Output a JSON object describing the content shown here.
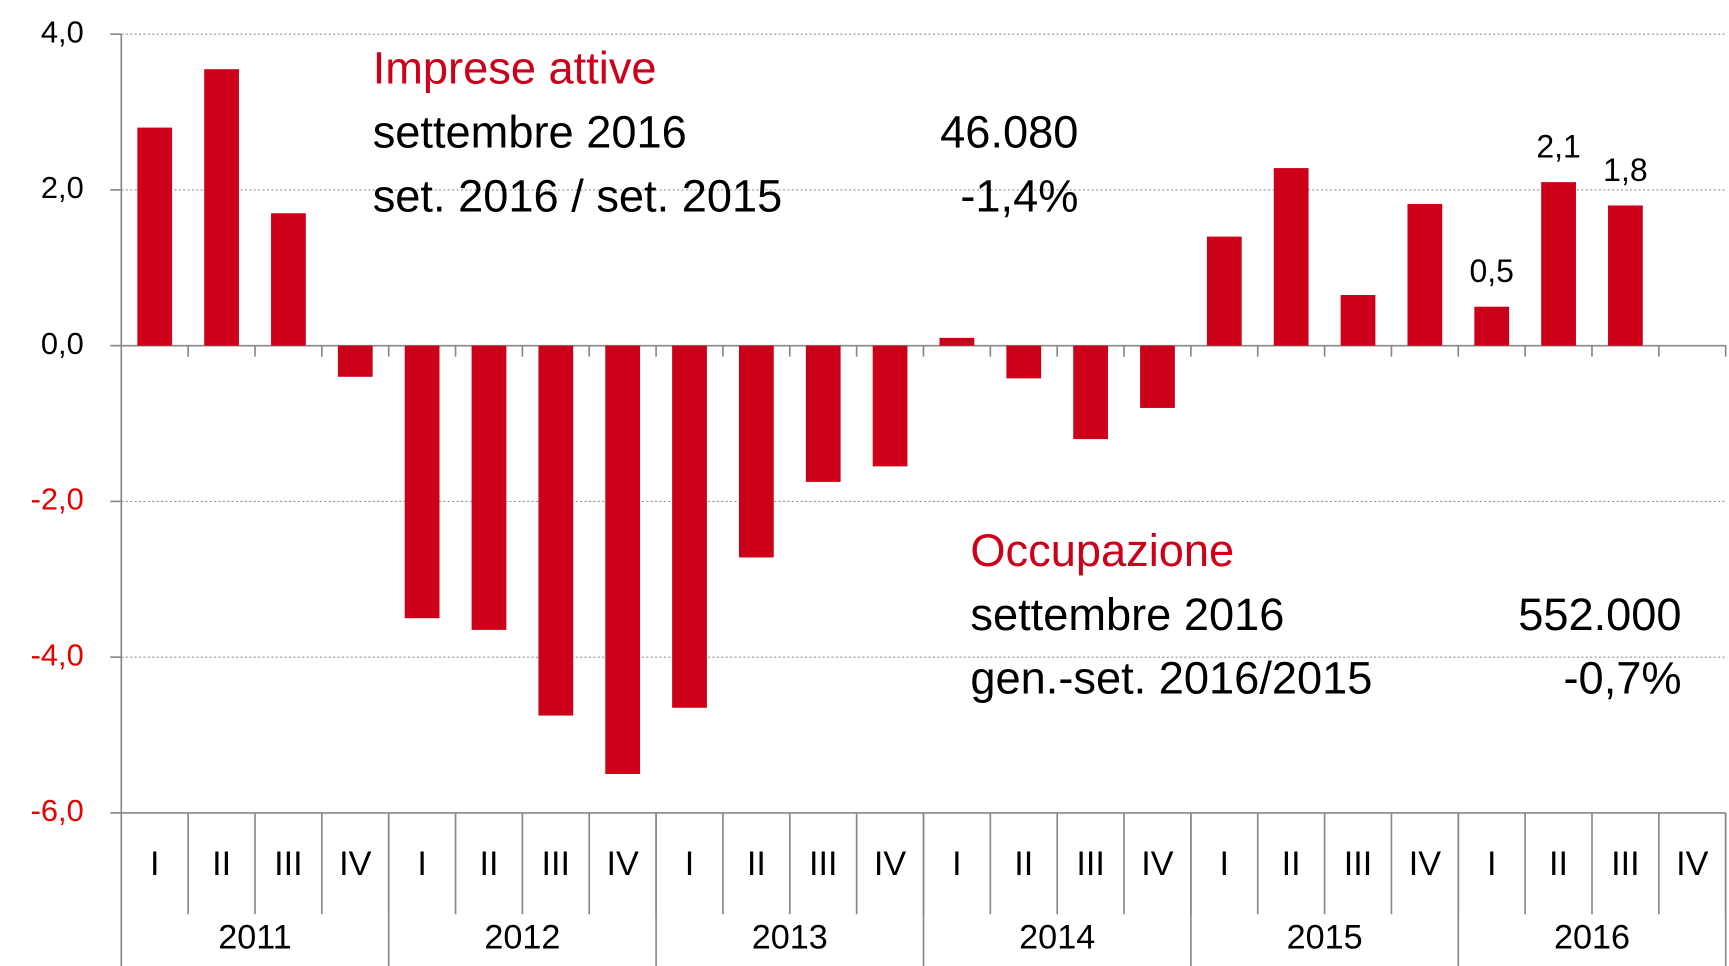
{
  "chart_data": {
    "type": "bar",
    "categories": [
      "I",
      "II",
      "III",
      "IV",
      "I",
      "II",
      "III",
      "IV",
      "I",
      "II",
      "III",
      "IV",
      "I",
      "II",
      "III",
      "IV",
      "I",
      "II",
      "III",
      "IV",
      "I",
      "II",
      "III",
      "IV"
    ],
    "groups": [
      {
        "label": "2011",
        "span": 4
      },
      {
        "label": "2012",
        "span": 4
      },
      {
        "label": "2013",
        "span": 4
      },
      {
        "label": "2014",
        "span": 4
      },
      {
        "label": "2015",
        "span": 4
      },
      {
        "label": "2016",
        "span": 4
      }
    ],
    "values": [
      2.8,
      3.55,
      1.7,
      -0.4,
      -3.5,
      -3.65,
      -4.75,
      -5.5,
      -4.65,
      -2.72,
      -1.75,
      -1.55,
      0.1,
      -0.42,
      -1.2,
      -0.8,
      1.4,
      2.28,
      0.65,
      1.82,
      0.5,
      2.1,
      1.8,
      null
    ],
    "value_labels": [
      null,
      null,
      null,
      null,
      null,
      null,
      null,
      null,
      null,
      null,
      null,
      null,
      null,
      null,
      null,
      null,
      null,
      null,
      null,
      null,
      "0,5",
      "2,1",
      "1,8",
      null
    ],
    "color": "#cc0019",
    "negative_tick_color": "#e60000",
    "ylim": [
      -6,
      4
    ],
    "yticks": [
      {
        "value": 4,
        "label": "4,0"
      },
      {
        "value": 2,
        "label": "2,0"
      },
      {
        "value": 0,
        "label": "0,0"
      },
      {
        "value": -2,
        "label": "-2,0"
      },
      {
        "value": -4,
        "label": "-4,0"
      },
      {
        "value": -6,
        "label": "-6,0"
      }
    ],
    "grid": true,
    "annotations": [
      {
        "title": "Imprese attive",
        "rows": [
          [
            "settembre 2016",
            "46.080"
          ],
          [
            "set. 2016 / set. 2015",
            "-1,4%"
          ]
        ]
      },
      {
        "title": "Occupazione",
        "rows": [
          [
            "settembre 2016",
            "552.000"
          ],
          [
            "gen.-set. 2016/2015",
            "-0,7%"
          ]
        ]
      }
    ]
  }
}
